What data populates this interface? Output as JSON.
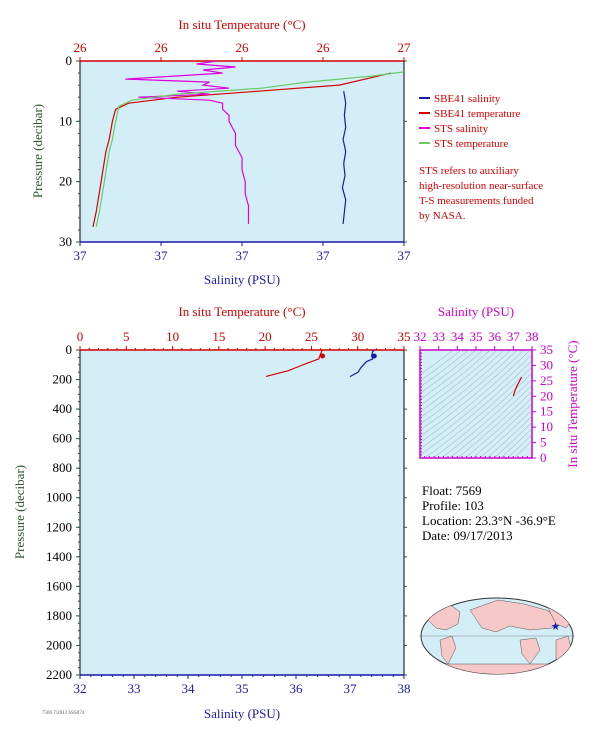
{
  "chart_data": [
    {
      "type": "line",
      "top_axis_label": "In situ Temperature (°C)",
      "top_ticks": [
        "26",
        "26",
        "26",
        "26",
        "27"
      ],
      "bottom_axis_label": "Salinity (PSU)",
      "bottom_ticks": [
        "37",
        "37",
        "37",
        "37",
        "37"
      ],
      "ylabel": "Pressure (decibar)",
      "ylim": [
        30,
        0
      ],
      "y_ticks": [
        0,
        10,
        20,
        30
      ],
      "temp_range": [
        26.0,
        27.0
      ],
      "sal_range": [
        36.9,
        37.4
      ],
      "legend": [
        {
          "name": "SBE41 salinity",
          "color": "#1a1aa8"
        },
        {
          "name": "SBE41 temperature",
          "color": "#d40000"
        },
        {
          "name": "STS salinity",
          "color": "#dd00dd"
        },
        {
          "name": "STS temperature",
          "color": "#66cc66"
        }
      ],
      "note": [
        "STS refers to auxiliary",
        "high-resolution near-surface",
        "T-S measurements funded",
        "by NASA."
      ],
      "series": [
        {
          "name": "SBE41 salinity",
          "axis": "salinity",
          "points": [
            [
              37.307,
              5
            ],
            [
              37.31,
              7
            ],
            [
              37.308,
              9
            ],
            [
              37.31,
              11
            ],
            [
              37.306,
              13
            ],
            [
              37.31,
              15
            ],
            [
              37.307,
              17
            ],
            [
              37.309,
              19
            ],
            [
              37.305,
              21
            ],
            [
              37.31,
              23
            ],
            [
              37.308,
              25
            ],
            [
              37.306,
              27
            ]
          ]
        },
        {
          "name": "SBE41 temperature",
          "axis": "temperature",
          "points": [
            [
              26.96,
              2
            ],
            [
              26.8,
              4
            ],
            [
              26.55,
              5
            ],
            [
              26.3,
              6
            ],
            [
              26.15,
              7
            ],
            [
              26.11,
              8
            ],
            [
              26.1,
              10
            ],
            [
              26.09,
              13
            ],
            [
              26.08,
              15
            ],
            [
              26.065,
              20
            ],
            [
              26.05,
              25
            ],
            [
              26.04,
              27.5
            ]
          ]
        },
        {
          "name": "STS salinity",
          "axis": "salinity",
          "points": [
            [
              37.11,
              0
            ],
            [
              37.08,
              0.5
            ],
            [
              37.14,
              1
            ],
            [
              37.09,
              1.5
            ],
            [
              37.12,
              2
            ],
            [
              36.97,
              3
            ],
            [
              37.1,
              3.5
            ],
            [
              37.09,
              4
            ],
            [
              37.13,
              4.5
            ],
            [
              37.05,
              5
            ],
            [
              37.1,
              5.5
            ],
            [
              36.99,
              6
            ],
            [
              37.1,
              6.5
            ],
            [
              37.12,
              7
            ],
            [
              37.12,
              8
            ],
            [
              37.13,
              9
            ],
            [
              37.13,
              10
            ],
            [
              37.14,
              12
            ],
            [
              37.14,
              14
            ],
            [
              37.15,
              16
            ],
            [
              37.15,
              18
            ],
            [
              37.155,
              20
            ],
            [
              37.155,
              22
            ],
            [
              37.16,
              24
            ],
            [
              37.16,
              26
            ],
            [
              37.16,
              27
            ]
          ]
        },
        {
          "name": "STS temperature",
          "axis": "temperature",
          "points": [
            [
              27.0,
              1.8
            ],
            [
              26.9,
              2.5
            ],
            [
              26.7,
              3.5
            ],
            [
              26.56,
              4.5
            ],
            [
              26.3,
              5.5
            ],
            [
              26.16,
              6.5
            ],
            [
              26.12,
              7.5
            ],
            [
              26.11,
              10
            ],
            [
              26.1,
              13
            ],
            [
              26.09,
              15
            ],
            [
              26.075,
              20
            ],
            [
              26.06,
              25
            ],
            [
              26.05,
              27.5
            ]
          ]
        }
      ]
    },
    {
      "type": "line",
      "top_axis_label": "In situ Temperature (°C)",
      "top_ticks": [
        "0",
        "5",
        "10",
        "15",
        "20",
        "25",
        "30",
        "35"
      ],
      "bottom_axis_label": "Salinity (PSU)",
      "bottom_ticks": [
        "32",
        "33",
        "34",
        "35",
        "36",
        "37",
        "38"
      ],
      "ylabel": "Pressure (decibar)",
      "y_ticks": [
        "0",
        "200",
        "400",
        "600",
        "800",
        "1000",
        "1200",
        "1400",
        "1600",
        "1800",
        "2000",
        "2200"
      ],
      "ylim": [
        2200,
        0
      ],
      "temp_range": [
        0,
        35
      ],
      "sal_range": [
        32,
        38
      ],
      "series": [
        {
          "name": "temperature",
          "axis": "temperature",
          "points": [
            [
              26.2,
              0
            ],
            [
              26.1,
              10
            ],
            [
              25.9,
              40
            ],
            [
              25.8,
              60
            ],
            [
              24.5,
              90
            ],
            [
              23.5,
              115
            ],
            [
              22.5,
              140
            ],
            [
              21.3,
              160
            ],
            [
              20.3,
              175
            ],
            [
              20.1,
              180
            ]
          ]
        },
        {
          "name": "salinity",
          "axis": "salinity",
          "points": [
            [
              37.45,
              0
            ],
            [
              37.42,
              10
            ],
            [
              37.4,
              40
            ],
            [
              37.42,
              60
            ],
            [
              37.3,
              80
            ],
            [
              37.25,
              100
            ],
            [
              37.2,
              120
            ],
            [
              37.15,
              150
            ],
            [
              37.05,
              170
            ],
            [
              37.0,
              180
            ]
          ]
        }
      ]
    },
    {
      "type": "line",
      "top_axis_label": "Salinity (PSU)",
      "top_ticks": [
        "32",
        "33",
        "34",
        "35",
        "36",
        "37",
        "38"
      ],
      "right_axis_label": "In situ Temperature (°C)",
      "right_ticks": [
        "0",
        "5",
        "10",
        "15",
        "20",
        "25",
        "30",
        "35"
      ],
      "sal_range": [
        32,
        38
      ],
      "temp_range": [
        0,
        35
      ],
      "series": [
        {
          "name": "T-S curve",
          "points": [
            [
              37.45,
              26.2
            ],
            [
              37.4,
              25.8
            ],
            [
              37.3,
              24.5
            ],
            [
              37.2,
              23.5
            ],
            [
              37.1,
              22.0
            ],
            [
              37.0,
              20.1
            ]
          ]
        }
      ]
    }
  ],
  "float_info": {
    "float": "Float:  7569",
    "profile": "Profile:  103",
    "location": "Location:  23.3°N  -36.9°E",
    "date": "Date:  09/17/2013"
  },
  "stamp": "7569 7/2013 SSS074",
  "map_marker": {
    "lat": 23.3,
    "lon": -36.9
  },
  "colors": {
    "plot_bg": "#d4eef8",
    "land": "#f6c8c8",
    "ocean": "#d4eef8"
  }
}
